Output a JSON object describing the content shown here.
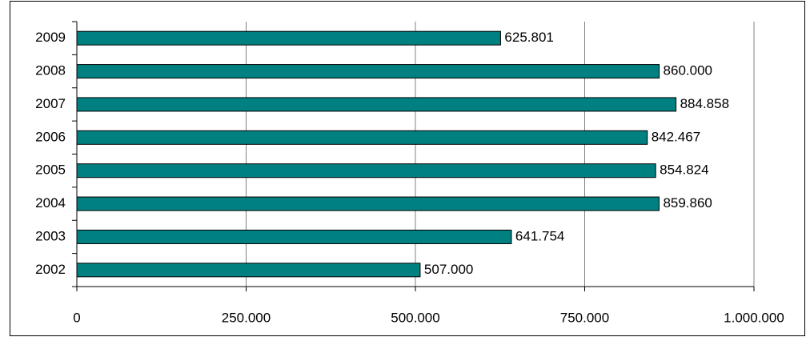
{
  "chart_data": {
    "type": "bar",
    "orientation": "horizontal",
    "categories": [
      "2009",
      "2008",
      "2007",
      "2006",
      "2005",
      "2004",
      "2003",
      "2002"
    ],
    "values": [
      625801,
      860000,
      884858,
      842467,
      854824,
      859860,
      641754,
      507000
    ],
    "value_labels": [
      "625.801",
      "860.000",
      "884.858",
      "842.467",
      "854.824",
      "859.860",
      "641.754",
      "507.000"
    ],
    "color": "#008080",
    "xlim": [
      0,
      1000000
    ],
    "xticks": [
      0,
      {
        "value": 250000,
        "label": "250.000"
      },
      {
        "value": 500000,
        "label": "500.000"
      },
      {
        "value": 750000,
        "label": "750.000"
      },
      {
        "value": 1000000,
        "label": "1.000.000"
      }
    ],
    "grid": true
  }
}
